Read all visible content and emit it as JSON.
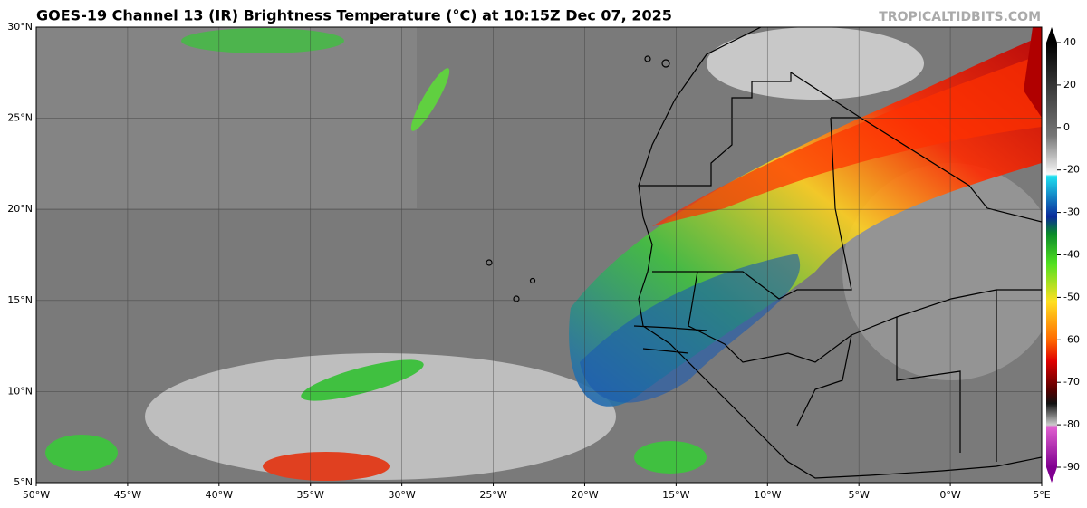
{
  "header": {
    "title": "GOES-19 Channel 13 (IR) Brightness Temperature (°C) at 10:15Z Dec 07, 2025",
    "watermark": "TROPICALTIDBITS.COM"
  },
  "map": {
    "lat_labels": [
      "30°N",
      "25°N",
      "20°N",
      "15°N",
      "10°N",
      "5°N"
    ],
    "lon_labels": [
      "50°W",
      "45°W",
      "40°W",
      "35°W",
      "30°W",
      "25°W",
      "20°W",
      "15°W",
      "10°W",
      "5°W",
      "0°W",
      "5°E"
    ]
  },
  "colorbar": {
    "ticks": [
      40,
      20,
      0,
      -20,
      -30,
      -40,
      -50,
      -60,
      -70,
      -80,
      -90
    ]
  }
}
